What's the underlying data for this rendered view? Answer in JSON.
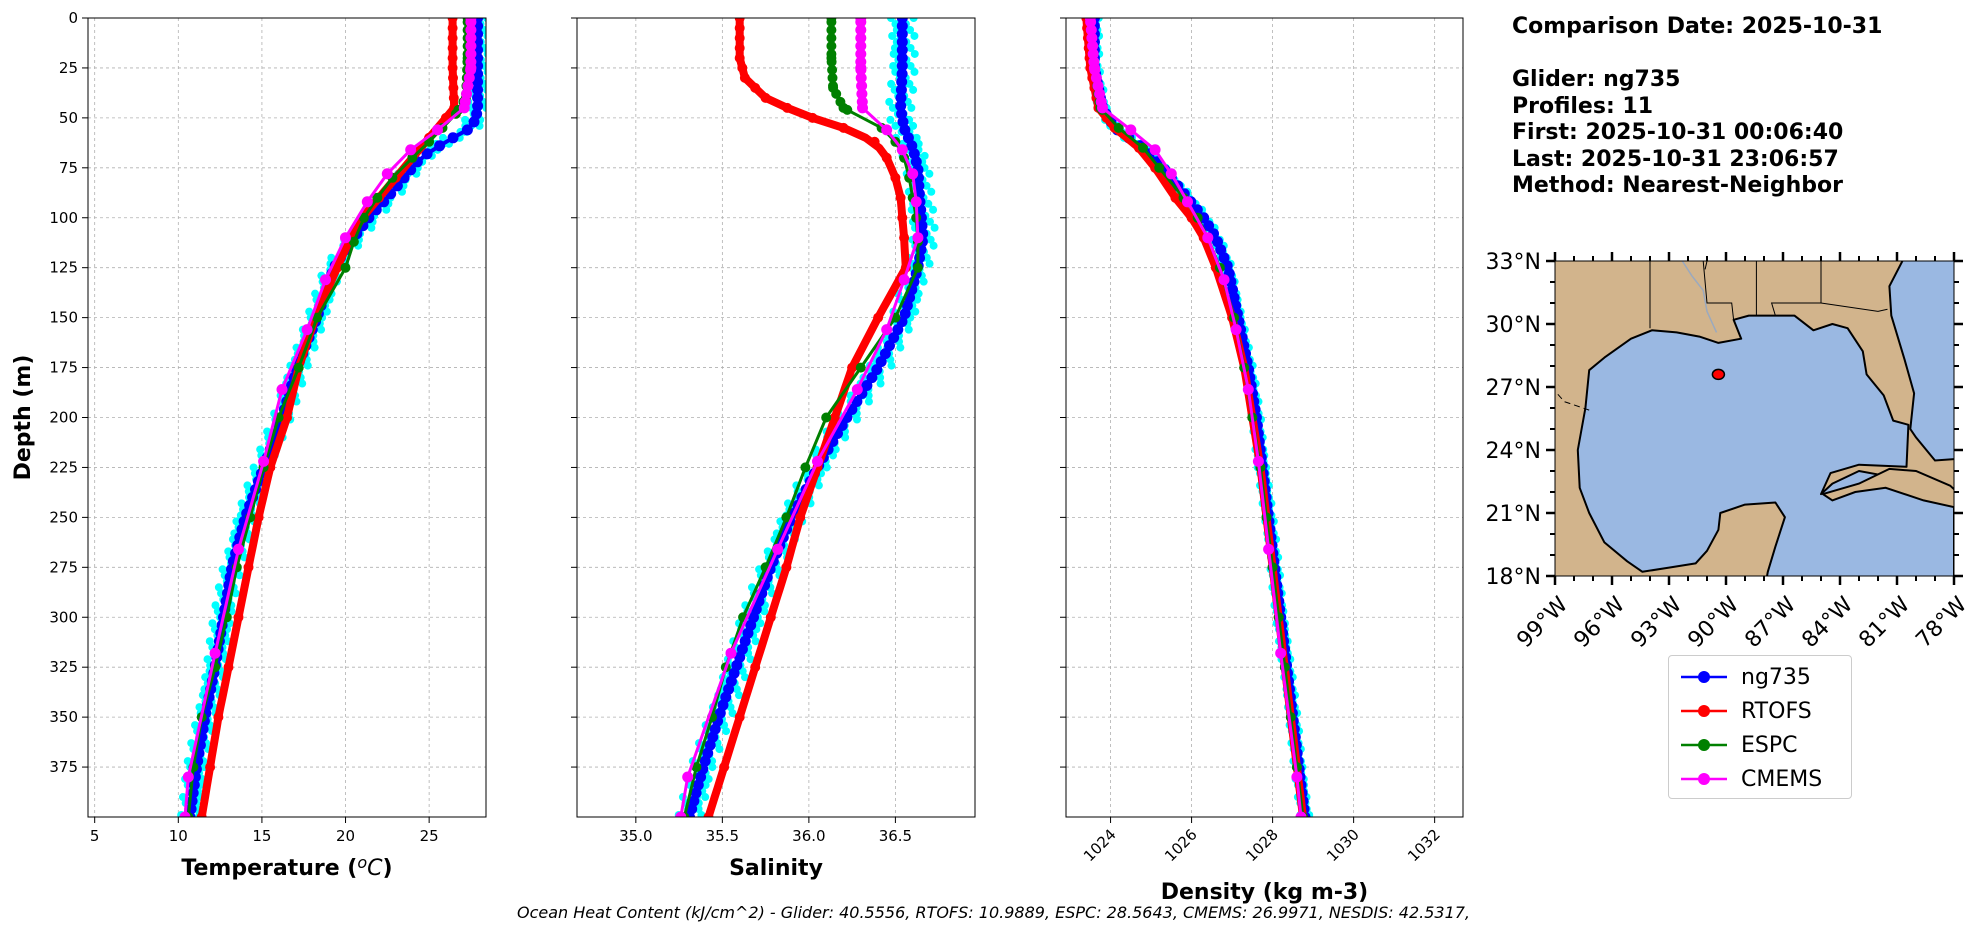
{
  "colors": {
    "glider": "#0000ff",
    "rtofs": "#ff0000",
    "espc": "#008000",
    "cmems": "#ff00ff",
    "glider_raw": "#00ffff",
    "land": "#d2b48c",
    "ocean": "#9ab8e2"
  },
  "info": {
    "comparison_date": "Comparison Date: 2025-10-31",
    "glider": "Glider: ng735",
    "profiles": "Profiles: 11",
    "first": "First: 2025-10-31 00:06:40",
    "last": "Last: 2025-10-31 23:06:57",
    "method": "Method: Nearest-Neighbor"
  },
  "legend": [
    {
      "label": "ng735",
      "color": "#0000ff"
    },
    {
      "label": "RTOFS",
      "color": "#ff0000"
    },
    {
      "label": "ESPC",
      "color": "#008000"
    },
    {
      "label": "CMEMS",
      "color": "#ff00ff"
    }
  ],
  "footer": "Ocean Heat Content (kJ/cm^2) - Glider: 40.5556,  RTOFS: 10.9889,  ESPC: 28.5643,  CMEMS: 26.9971,  NESDIS: 42.5317,",
  "chart_data": [
    {
      "type": "line",
      "id": "temperature",
      "xlabel": "Temperature (°C)",
      "xlabel_main": "Temperature (",
      "xlabel_unit": "oC",
      "xlabel_end": ")",
      "ylabel": "Depth (m)",
      "xlim": [
        4.6,
        28.4
      ],
      "ylim": [
        400,
        0
      ],
      "xticks": [
        5,
        10,
        15,
        20,
        25
      ],
      "xtick_labels": [
        "5",
        "10",
        "15",
        "20",
        "25"
      ],
      "yticks": [
        0,
        25,
        50,
        75,
        100,
        125,
        150,
        175,
        200,
        225,
        250,
        275,
        300,
        325,
        350,
        375
      ],
      "ytick_labels": [
        "0",
        "25",
        "50",
        "75",
        "100",
        "125",
        "150",
        "175",
        "200",
        "225",
        "250",
        "275",
        "300",
        "325",
        "350",
        "375"
      ],
      "grid": true,
      "series": [
        {
          "name": "ng735",
          "depth": [
            0,
            25,
            45,
            50,
            55,
            62,
            70,
            80,
            90,
            100,
            110,
            125,
            150,
            175,
            200,
            225,
            250,
            275,
            300,
            325,
            350,
            375,
            400
          ],
          "values": [
            27.9,
            27.9,
            27.9,
            27.8,
            27.5,
            26.0,
            24.5,
            23.5,
            22.5,
            21.4,
            20.5,
            19.3,
            18.3,
            17.1,
            16.2,
            15.1,
            14.0,
            13.2,
            12.7,
            12.2,
            11.6,
            11.1,
            10.7
          ]
        },
        {
          "name": "RTOFS",
          "depth": [
            0,
            25,
            45,
            50,
            60,
            70,
            80,
            90,
            100,
            110,
            125,
            150,
            175,
            200,
            225,
            250,
            275,
            300,
            325,
            350,
            375,
            400
          ],
          "values": [
            26.4,
            26.4,
            26.5,
            26.0,
            25.0,
            24.0,
            23.0,
            22.0,
            21.0,
            20.3,
            19.5,
            18.2,
            17.2,
            16.5,
            15.5,
            14.8,
            14.2,
            13.6,
            13.0,
            12.4,
            11.9,
            11.4
          ]
        },
        {
          "name": "ESPC",
          "depth": [
            0,
            20,
            40,
            48,
            55,
            62,
            70,
            80,
            90,
            100,
            112,
            125,
            150,
            175,
            200,
            225,
            250,
            275,
            300,
            325,
            350,
            375,
            400
          ],
          "values": [
            27.3,
            27.3,
            27.2,
            26.6,
            25.8,
            25.0,
            24.0,
            22.8,
            21.9,
            21.1,
            20.5,
            20.0,
            18.3,
            17.2,
            16.0,
            15.1,
            14.3,
            13.5,
            12.9,
            12.2,
            11.4,
            10.9,
            10.6
          ]
        },
        {
          "name": "CMEMS",
          "depth": [
            0,
            25,
            45,
            56,
            66,
            78,
            92,
            110,
            131,
            156,
            186,
            222,
            266,
            318,
            380,
            400
          ],
          "values": [
            27.5,
            27.5,
            27.1,
            25.5,
            23.9,
            22.5,
            21.3,
            20.0,
            18.8,
            17.7,
            16.2,
            15.1,
            13.6,
            12.2,
            10.6,
            10.4
          ]
        }
      ]
    },
    {
      "type": "line",
      "id": "salinity",
      "xlabel": "Salinity",
      "xlim": [
        34.66,
        36.96
      ],
      "ylim": [
        400,
        0
      ],
      "xticks": [
        35.0,
        35.5,
        36.0,
        36.5
      ],
      "xtick_labels": [
        "35.0",
        "35.5",
        "36.0",
        "36.5"
      ],
      "grid": true,
      "series": [
        {
          "name": "ng735",
          "depth": [
            0,
            25,
            45,
            55,
            65,
            75,
            90,
            100,
            110,
            125,
            150,
            175,
            200,
            225,
            250,
            275,
            300,
            325,
            350,
            375,
            400
          ],
          "values": [
            36.54,
            36.54,
            36.53,
            36.55,
            36.6,
            36.63,
            36.64,
            36.65,
            36.66,
            36.63,
            36.55,
            36.4,
            36.22,
            36.05,
            35.9,
            35.78,
            35.68,
            35.58,
            35.48,
            35.39,
            35.31
          ]
        },
        {
          "name": "RTOFS",
          "depth": [
            0,
            20,
            30,
            40,
            48,
            55,
            62,
            70,
            80,
            90,
            100,
            110,
            125,
            150,
            175,
            200,
            225,
            250,
            275,
            300,
            325,
            350,
            375,
            400
          ],
          "values": [
            35.6,
            35.6,
            35.63,
            35.75,
            35.95,
            36.2,
            36.38,
            36.45,
            36.5,
            36.53,
            36.54,
            36.55,
            36.56,
            36.4,
            36.25,
            36.15,
            36.05,
            35.95,
            35.87,
            35.78,
            35.69,
            35.6,
            35.51,
            35.42
          ]
        },
        {
          "name": "ESPC",
          "depth": [
            0,
            20,
            35,
            45,
            55,
            62,
            70,
            80,
            90,
            100,
            112,
            125,
            150,
            175,
            200,
            225,
            250,
            275,
            300,
            325,
            350,
            375,
            400
          ],
          "values": [
            36.13,
            36.13,
            36.14,
            36.2,
            36.42,
            36.5,
            36.55,
            36.58,
            36.6,
            36.62,
            36.63,
            36.63,
            36.5,
            36.3,
            36.1,
            35.98,
            35.87,
            35.75,
            35.62,
            35.52,
            35.44,
            35.35,
            35.28
          ]
        },
        {
          "name": "CMEMS",
          "depth": [
            0,
            25,
            45,
            56,
            66,
            78,
            92,
            110,
            131,
            156,
            186,
            222,
            266,
            318,
            380,
            400
          ],
          "values": [
            36.3,
            36.3,
            36.31,
            36.45,
            36.54,
            36.6,
            36.62,
            36.63,
            36.55,
            36.45,
            36.28,
            36.05,
            35.82,
            35.55,
            35.3,
            35.26
          ]
        }
      ]
    },
    {
      "type": "line",
      "id": "density",
      "xlabel": "Density (kg m-3)",
      "xlim": [
        1022.9,
        1032.7
      ],
      "ylim": [
        400,
        0
      ],
      "xticks": [
        1024,
        1026,
        1028,
        1030,
        1032
      ],
      "xtick_labels": [
        "1024",
        "1026",
        "1028",
        "1030",
        "1032"
      ],
      "grid": true,
      "series": [
        {
          "name": "ng735",
          "depth": [
            0,
            25,
            45,
            55,
            65,
            75,
            90,
            100,
            110,
            125,
            150,
            175,
            200,
            225,
            250,
            275,
            300,
            325,
            350,
            375,
            400
          ],
          "values": [
            1023.6,
            1023.6,
            1023.8,
            1024.1,
            1024.8,
            1025.3,
            1025.9,
            1026.3,
            1026.6,
            1026.9,
            1027.15,
            1027.4,
            1027.6,
            1027.75,
            1027.9,
            1028.05,
            1028.2,
            1028.35,
            1028.5,
            1028.65,
            1028.8
          ]
        },
        {
          "name": "RTOFS",
          "depth": [
            0,
            25,
            45,
            55,
            65,
            75,
            90,
            100,
            110,
            125,
            150,
            175,
            200,
            225,
            250,
            275,
            300,
            325,
            350,
            375,
            400
          ],
          "values": [
            1023.4,
            1023.5,
            1023.7,
            1024.1,
            1024.7,
            1025.1,
            1025.6,
            1026.0,
            1026.3,
            1026.6,
            1027.0,
            1027.3,
            1027.5,
            1027.7,
            1027.85,
            1028.0,
            1028.15,
            1028.3,
            1028.45,
            1028.6,
            1028.75
          ]
        },
        {
          "name": "ESPC",
          "depth": [
            0,
            25,
            45,
            55,
            65,
            75,
            90,
            100,
            110,
            125,
            150,
            175,
            200,
            225,
            250,
            275,
            300,
            325,
            350,
            375,
            400
          ],
          "values": [
            1023.5,
            1023.6,
            1023.75,
            1024.2,
            1024.8,
            1025.2,
            1025.8,
            1026.15,
            1026.4,
            1026.7,
            1027.05,
            1027.3,
            1027.5,
            1027.7,
            1027.85,
            1028.0,
            1028.15,
            1028.3,
            1028.45,
            1028.6,
            1028.75
          ]
        },
        {
          "name": "CMEMS",
          "depth": [
            0,
            25,
            45,
            56,
            66,
            78,
            92,
            110,
            131,
            156,
            186,
            222,
            266,
            318,
            380,
            400
          ],
          "values": [
            1023.5,
            1023.6,
            1023.8,
            1024.5,
            1025.1,
            1025.5,
            1025.9,
            1026.4,
            1026.8,
            1027.1,
            1027.4,
            1027.65,
            1027.9,
            1028.2,
            1028.6,
            1028.7
          ]
        }
      ]
    },
    {
      "type": "map",
      "id": "location-map",
      "lon_range": [
        -99,
        -78
      ],
      "lat_range": [
        18,
        33
      ],
      "lon_ticks": [
        -99,
        -96,
        -93,
        -90,
        -87,
        -84,
        -81,
        -78
      ],
      "lon_labels": [
        "99°W",
        "96°W",
        "93°W",
        "90°W",
        "87°W",
        "84°W",
        "81°W",
        "78°W"
      ],
      "lat_ticks": [
        33,
        30,
        27,
        24,
        21,
        18
      ],
      "lat_labels": [
        "33°N",
        "30°N",
        "27°N",
        "24°N",
        "21°N",
        "18°N"
      ],
      "glider_position": {
        "lon": -90.4,
        "lat": 27.6
      }
    }
  ]
}
